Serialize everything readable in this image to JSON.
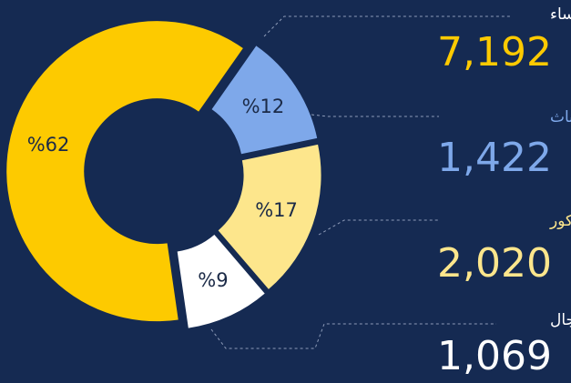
{
  "chart_data": {
    "type": "pie",
    "categories": [
      "نساء",
      "أطفال إناث",
      "أطفال ذكور",
      "رجال"
    ],
    "values": [
      62,
      12,
      17,
      9
    ],
    "value_labels": [
      "%62",
      "%12",
      "%17",
      "%9"
    ],
    "counts": [
      7192,
      1422,
      2020,
      1069
    ],
    "count_labels": [
      "7,192",
      "1,422",
      "2,020",
      "1,069"
    ],
    "colors": [
      "#fdca00",
      "#7ea8ea",
      "#fde68c",
      "#ffffff"
    ]
  }
}
